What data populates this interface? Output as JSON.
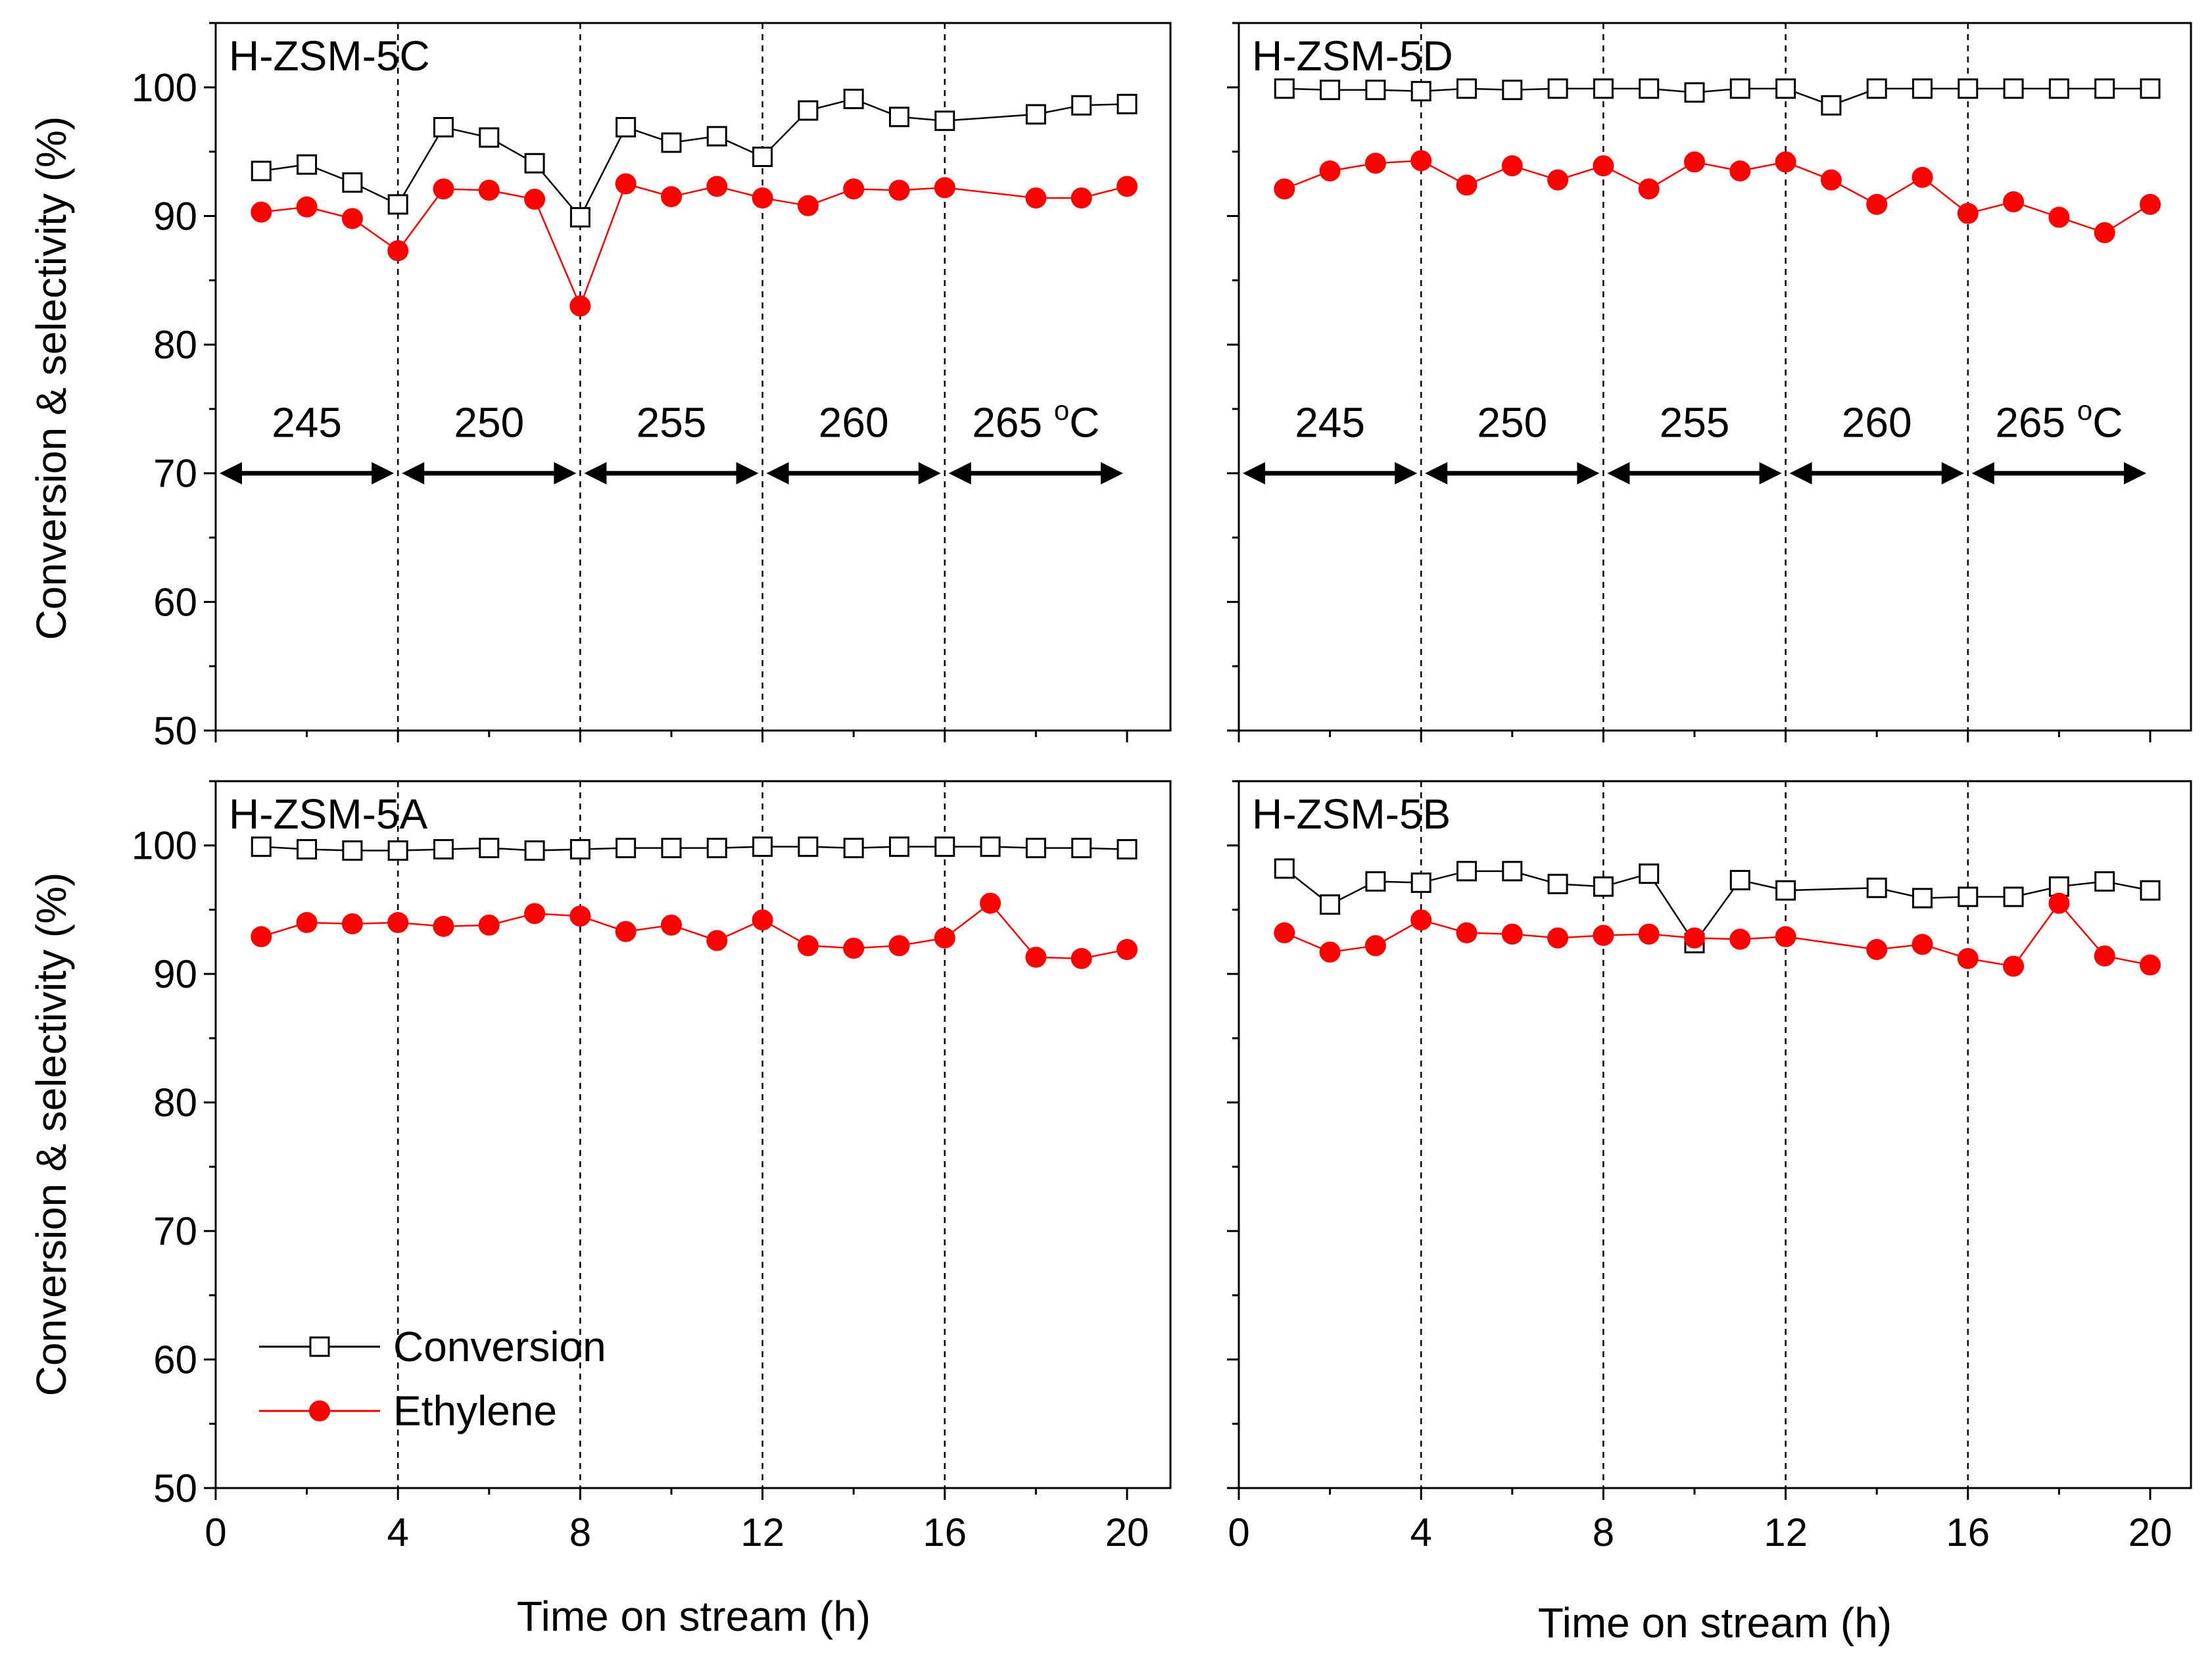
{
  "figure": {
    "y_axis_label": "Conversion & selectivity (%)",
    "x_axis_label": "Time on stream (h)"
  },
  "colors": {
    "conversion": "#000000",
    "ethylene": "#ff0000",
    "axis": "#000000"
  },
  "chart_data": [
    {
      "type": "line",
      "title": "H-ZSM-5C",
      "xlabel": "",
      "ylabel": "Conversion & selectivity (%)",
      "xlim": [
        0,
        20.5
      ],
      "ylim": [
        50,
        105
      ],
      "xticks": [],
      "yticks": [
        "50",
        "60",
        "70",
        "80",
        "90",
        "100"
      ],
      "dividers": [
        4,
        8,
        12,
        16
      ],
      "temperature_ranges": [
        {
          "label": "245",
          "from": 0,
          "to": 4
        },
        {
          "label": "250",
          "from": 4,
          "to": 8
        },
        {
          "label": "255",
          "from": 8,
          "to": 12
        },
        {
          "label": "260",
          "from": 12,
          "to": 16
        },
        {
          "label": "265 °C",
          "from": 16,
          "to": 20
        }
      ],
      "series": [
        {
          "name": "Conversion",
          "marker": "open-square",
          "x": [
            1,
            2,
            3,
            4,
            5,
            6,
            7,
            8,
            9,
            10,
            11,
            12,
            13,
            14,
            15,
            16,
            18,
            19,
            20
          ],
          "values": [
            93.5,
            94.0,
            92.6,
            90.9,
            96.9,
            96.1,
            94.1,
            89.9,
            96.9,
            95.7,
            96.2,
            94.6,
            98.2,
            99.1,
            97.7,
            97.4,
            97.9,
            98.6,
            98.7
          ]
        },
        {
          "name": "Ethylene",
          "marker": "filled-circle",
          "x": [
            1,
            2,
            3,
            4,
            5,
            6,
            7,
            8,
            9,
            10,
            11,
            12,
            13,
            14,
            15,
            16,
            18,
            19,
            20
          ],
          "values": [
            90.3,
            90.7,
            89.8,
            87.3,
            92.1,
            92.0,
            91.3,
            83.0,
            92.5,
            91.5,
            92.3,
            91.4,
            90.8,
            92.1,
            92.0,
            92.2,
            91.4,
            91.4,
            92.3
          ]
        }
      ]
    },
    {
      "type": "line",
      "title": "H-ZSM-5D",
      "xlabel": "",
      "ylabel": "",
      "xlim": [
        0,
        20.5
      ],
      "ylim": [
        50,
        105
      ],
      "xticks": [],
      "yticks": [],
      "dividers": [
        4,
        8,
        12,
        16
      ],
      "temperature_ranges": [
        {
          "label": "245",
          "from": 0,
          "to": 4
        },
        {
          "label": "250",
          "from": 4,
          "to": 8
        },
        {
          "label": "255",
          "from": 8,
          "to": 12
        },
        {
          "label": "260",
          "from": 12,
          "to": 16
        },
        {
          "label": "265 °C",
          "from": 16,
          "to": 20
        }
      ],
      "series": [
        {
          "name": "Conversion",
          "marker": "open-square",
          "x": [
            1,
            2,
            3,
            4,
            5,
            6,
            7,
            8,
            9,
            10,
            11,
            12,
            13,
            14,
            15,
            16,
            17,
            18,
            19,
            20
          ],
          "values": [
            99.9,
            99.8,
            99.8,
            99.7,
            99.9,
            99.8,
            99.9,
            99.9,
            99.9,
            99.6,
            99.9,
            99.9,
            98.6,
            99.9,
            99.9,
            99.9,
            99.9,
            99.9,
            99.9,
            99.9
          ]
        },
        {
          "name": "Ethylene",
          "marker": "filled-circle",
          "x": [
            1,
            2,
            3,
            4,
            5,
            6,
            7,
            8,
            9,
            10,
            11,
            12,
            13,
            14,
            15,
            16,
            17,
            18,
            19,
            20
          ],
          "values": [
            92.1,
            93.5,
            94.1,
            94.3,
            92.4,
            93.9,
            92.8,
            93.9,
            92.1,
            94.2,
            93.5,
            94.2,
            92.8,
            90.9,
            93.0,
            90.2,
            91.1,
            89.9,
            88.7,
            90.9
          ]
        }
      ]
    },
    {
      "type": "line",
      "title": "H-ZSM-5A",
      "xlabel": "Time on stream (h)",
      "ylabel": "Conversion & selectivity (%)",
      "xlim": [
        0,
        20.5
      ],
      "ylim": [
        50,
        105
      ],
      "xticks": [
        "0",
        "4",
        "8",
        "12",
        "16",
        "20"
      ],
      "yticks": [
        "50",
        "60",
        "70",
        "80",
        "90",
        "100"
      ],
      "dividers": [
        4,
        8,
        12,
        16
      ],
      "temperature_ranges": [],
      "legend": {
        "position": "bottom-left",
        "entries": [
          "Conversion",
          "Ethylene"
        ]
      },
      "series": [
        {
          "name": "Conversion",
          "marker": "open-square",
          "x": [
            1,
            2,
            3,
            4,
            5,
            6,
            7,
            8,
            9,
            10,
            11,
            12,
            13,
            14,
            15,
            16,
            17,
            18,
            19,
            20
          ],
          "values": [
            99.9,
            99.7,
            99.6,
            99.6,
            99.7,
            99.8,
            99.6,
            99.7,
            99.8,
            99.8,
            99.8,
            99.9,
            99.9,
            99.8,
            99.9,
            99.9,
            99.9,
            99.8,
            99.8,
            99.7
          ]
        },
        {
          "name": "Ethylene",
          "marker": "filled-circle",
          "x": [
            1,
            2,
            3,
            4,
            5,
            6,
            7,
            8,
            9,
            10,
            11,
            12,
            13,
            14,
            15,
            16,
            17,
            18,
            19,
            20
          ],
          "values": [
            92.9,
            94.0,
            93.9,
            94.0,
            93.7,
            93.8,
            94.7,
            94.5,
            93.3,
            93.8,
            92.6,
            94.2,
            92.2,
            92.0,
            92.2,
            92.8,
            95.5,
            91.3,
            91.2,
            91.9
          ]
        }
      ]
    },
    {
      "type": "line",
      "title": "H-ZSM-5B",
      "xlabel": "Time on stream (h)",
      "ylabel": "",
      "xlim": [
        0,
        20.5
      ],
      "ylim": [
        50,
        105
      ],
      "xticks": [
        "0",
        "4",
        "8",
        "12",
        "16",
        "20"
      ],
      "yticks": [],
      "dividers": [
        4,
        8,
        12,
        16
      ],
      "temperature_ranges": [],
      "series": [
        {
          "name": "Conversion",
          "marker": "open-square",
          "x": [
            1,
            2,
            3,
            4,
            5,
            6,
            7,
            8,
            9,
            10,
            11,
            12,
            14,
            15,
            16,
            17,
            18,
            19,
            20
          ],
          "values": [
            98.2,
            95.4,
            97.2,
            97.1,
            98.0,
            98.0,
            97.0,
            96.8,
            97.8,
            92.4,
            97.3,
            96.5,
            96.7,
            95.9,
            96.0,
            96.0,
            96.8,
            97.2,
            96.5
          ]
        },
        {
          "name": "Ethylene",
          "marker": "filled-circle",
          "x": [
            1,
            2,
            3,
            4,
            5,
            6,
            7,
            8,
            9,
            10,
            11,
            12,
            14,
            15,
            16,
            17,
            18,
            19,
            20
          ],
          "values": [
            93.2,
            91.7,
            92.2,
            94.2,
            93.2,
            93.1,
            92.8,
            93.0,
            93.1,
            92.8,
            92.7,
            92.9,
            91.9,
            92.3,
            91.2,
            90.6,
            95.5,
            91.4,
            90.7
          ]
        }
      ]
    }
  ]
}
